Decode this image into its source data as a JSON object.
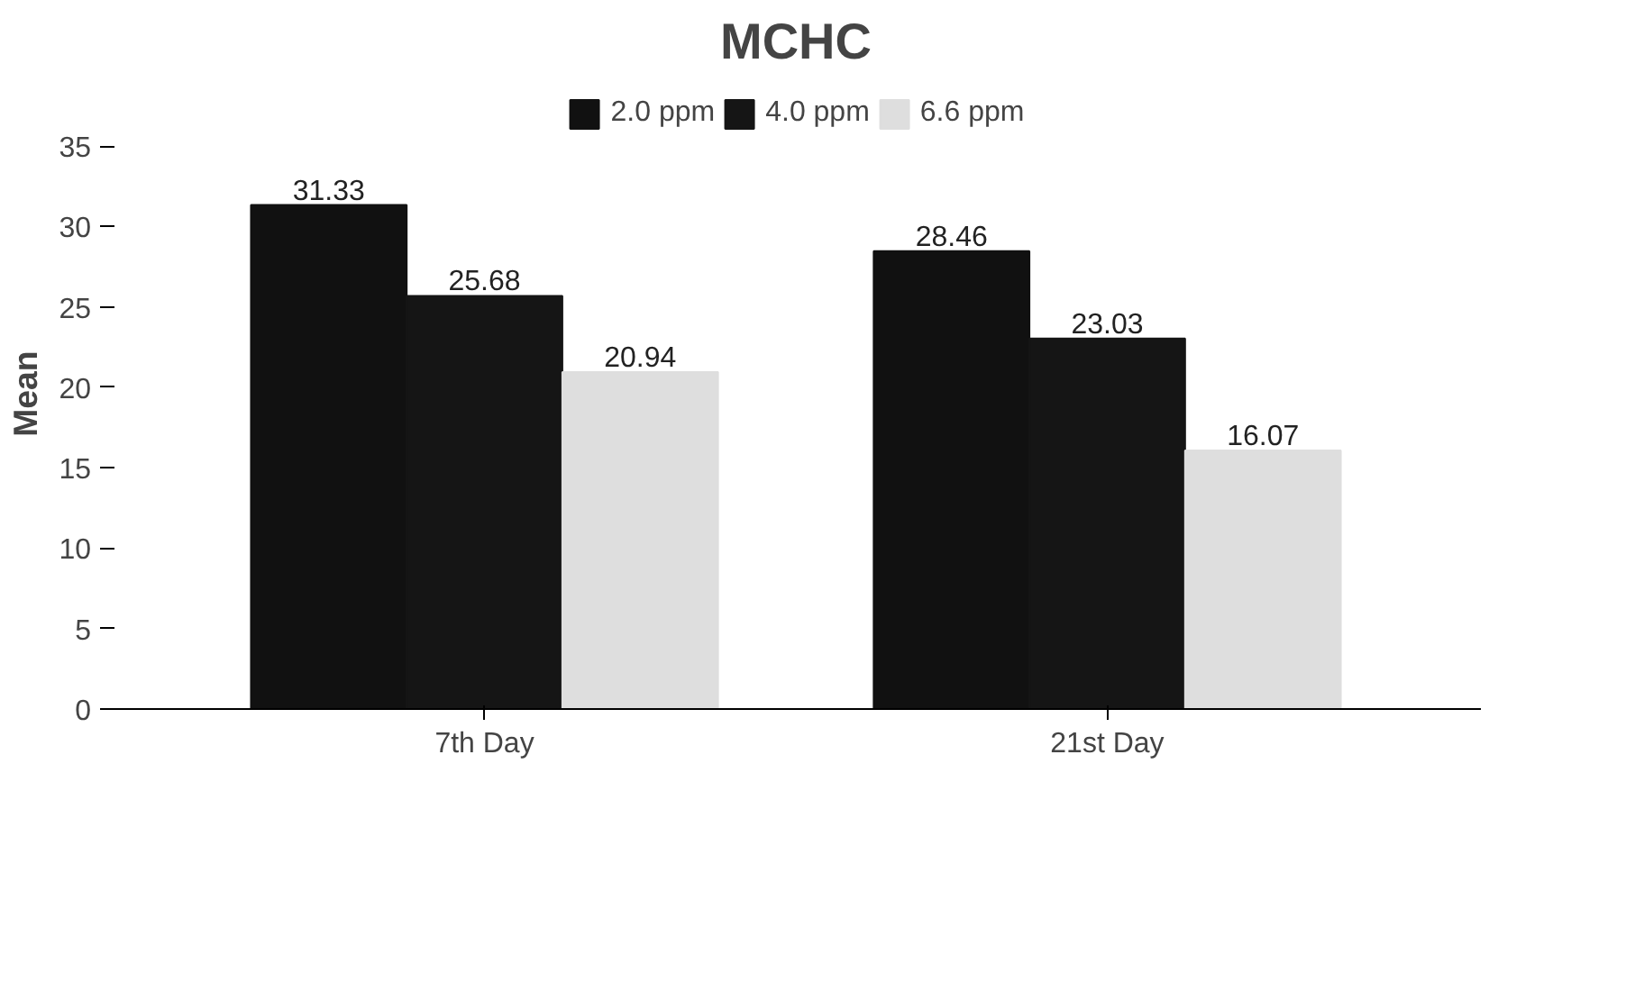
{
  "chart_data": {
    "type": "bar",
    "title": "MCHC",
    "ylabel": "Mean",
    "categories": [
      "7th Day",
      "21st Day"
    ],
    "series": [
      {
        "name": "2.0 ppm",
        "color": "#111111",
        "values": [
          31.33,
          28.46
        ]
      },
      {
        "name": "4.0 ppm",
        "color": "#151515",
        "values": [
          25.68,
          23.03
        ]
      },
      {
        "name": "6.6 ppm",
        "color": "#dedede",
        "values": [
          20.94,
          16.07
        ]
      }
    ],
    "ylim": [
      0,
      35
    ],
    "yticks": [
      0,
      5,
      10,
      15,
      20,
      25,
      30,
      35
    ],
    "grid": false,
    "legend": "top",
    "data_labels": true
  }
}
